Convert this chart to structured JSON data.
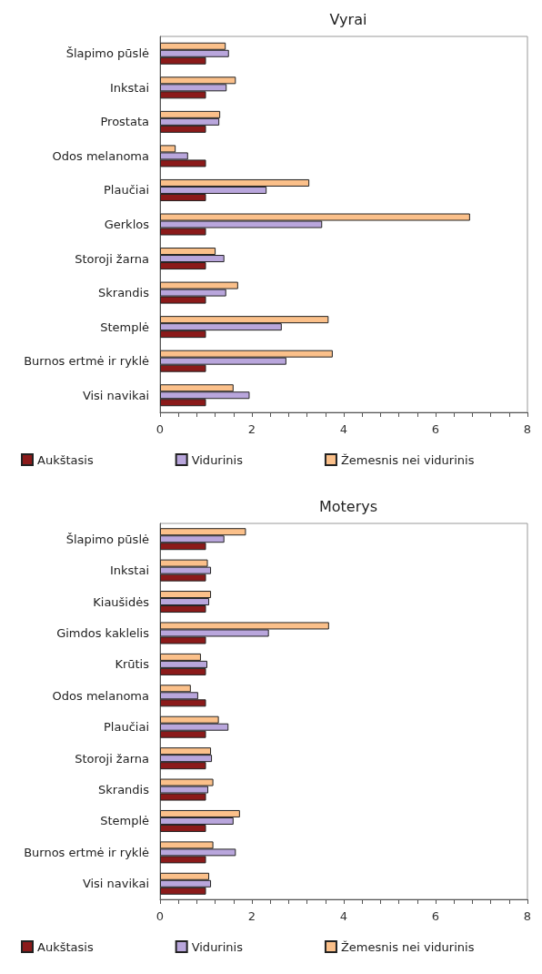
{
  "chart_data": [
    {
      "type": "bar",
      "orientation": "horizontal",
      "title": "Vyrai",
      "categories": [
        "Šlapimo pūslė",
        "Inkstai",
        "Prostata",
        "Odos melanoma",
        "Plaučiai",
        "Gerklos",
        "Storoji žarna",
        "Skrandis",
        "Stemplė",
        "Burnos ertmė ir ryklė",
        "Visi navikai"
      ],
      "series": [
        {
          "name": "Aukštasis",
          "color": "#8b1a1a",
          "values": [
            1,
            1,
            1,
            1,
            1,
            1,
            1,
            1,
            1,
            1,
            1
          ]
        },
        {
          "name": "Vidurinis",
          "color": "#b9a6dc",
          "values": [
            1.5,
            1.45,
            1.29,
            0.61,
            2.32,
            3.53,
            1.4,
            1.44,
            2.65,
            2.75,
            1.95
          ]
        },
        {
          "name": "Žemesnis nei vidurinis",
          "color": "#fbc08a",
          "values": [
            1.43,
            1.65,
            1.31,
            0.34,
            3.25,
            6.75,
            1.21,
            1.7,
            3.67,
            3.76,
            1.6
          ]
        }
      ],
      "xlim": [
        0,
        8
      ],
      "xticks": [
        0,
        2,
        4,
        6,
        8
      ],
      "grid": false,
      "legend": "bottom"
    },
    {
      "type": "bar",
      "orientation": "horizontal",
      "title": "Moterys",
      "categories": [
        "Šlapimo pūslė",
        "Inkstai",
        "Kiaušidės",
        "Gimdos kaklelis",
        "Krūtis",
        "Odos melanoma",
        "Plaučiai",
        "Storoji žarna",
        "Skrandis",
        "Stemplė",
        "Burnos ertmė ir ryklė",
        "Visi navikai"
      ],
      "series": [
        {
          "name": "Aukštasis",
          "color": "#8b1a1a",
          "values": [
            1,
            1,
            1,
            1,
            1,
            1,
            1,
            1,
            1,
            1,
            1,
            1
          ]
        },
        {
          "name": "Vidurinis",
          "color": "#b9a6dc",
          "values": [
            1.4,
            1.11,
            1.07,
            2.37,
            1.03,
            0.83,
            1.49,
            1.13,
            1.05,
            1.6,
            1.65,
            1.11
          ]
        },
        {
          "name": "Žemesnis nei vidurinis",
          "color": "#fbc08a",
          "values": [
            1.87,
            1.04,
            1.11,
            3.68,
            0.89,
            0.67,
            1.28,
            1.11,
            1.16,
            1.74,
            1.16,
            1.07
          ]
        }
      ],
      "xlim": [
        0,
        8
      ],
      "xticks": [
        0,
        2,
        4,
        6,
        8
      ],
      "grid": false,
      "legend": "bottom"
    }
  ]
}
